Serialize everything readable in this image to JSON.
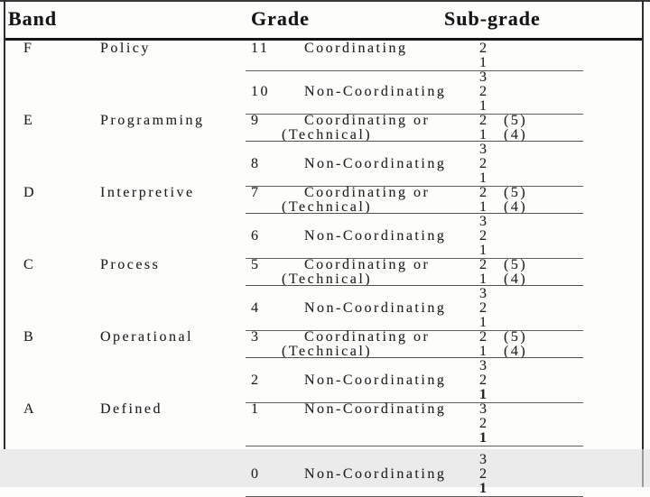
{
  "header": {
    "band": "Band",
    "grade": "Grade",
    "sub_grade": "Sub-grade"
  },
  "colors": {
    "page_bg": "#fdfdfc",
    "footer_band_bg": "#ebebeb",
    "text": "#222222",
    "header_text": "#141414",
    "separator_line": "#5f5f5f",
    "table_border": "#2e2e2e"
  },
  "table": {
    "bands": [
      {
        "letter": "F",
        "name": "Policy",
        "groups": [
          {
            "grade": "11",
            "type": "Coordinating",
            "grade_row": 0,
            "subs": [
              {
                "n": "2"
              },
              {
                "n": "1"
              }
            ]
          },
          {
            "grade": "10",
            "type": "Non-Coordinating",
            "grade_row": 1,
            "subs": [
              {
                "n": "3"
              },
              {
                "n": "2"
              },
              {
                "n": "1"
              }
            ]
          }
        ]
      },
      {
        "letter": "E",
        "name": "Programming",
        "groups": [
          {
            "grade": "9",
            "type": "Coordinating or",
            "type2": "(Technical)",
            "grade_row": 0,
            "subs": [
              {
                "n": "2",
                "note": "(5)"
              },
              {
                "n": "1",
                "note": "(4)"
              }
            ]
          },
          {
            "grade": "8",
            "type": "Non-Coordinating",
            "grade_row": 1,
            "subs": [
              {
                "n": "3"
              },
              {
                "n": "2"
              },
              {
                "n": "1"
              }
            ]
          }
        ]
      },
      {
        "letter": "D",
        "name": "Interpretive",
        "groups": [
          {
            "grade": "7",
            "type": "Coordinating or",
            "type2": "(Technical)",
            "grade_row": 0,
            "subs": [
              {
                "n": "2",
                "note": "(5)"
              },
              {
                "n": "1",
                "note": "(4)"
              }
            ]
          },
          {
            "grade": "6",
            "type": "Non-Coordinating",
            "grade_row": 1,
            "subs": [
              {
                "n": "3"
              },
              {
                "n": "2"
              },
              {
                "n": "1"
              }
            ]
          }
        ]
      },
      {
        "letter": "C",
        "name": "Process",
        "groups": [
          {
            "grade": "5",
            "type": "Coordinating or",
            "type2": "(Technical)",
            "grade_row": 0,
            "subs": [
              {
                "n": "2",
                "note": "(5)"
              },
              {
                "n": "1",
                "note": "(4)"
              }
            ]
          },
          {
            "grade": "4",
            "type": "Non-Coordinating",
            "grade_row": 1,
            "subs": [
              {
                "n": "3"
              },
              {
                "n": "2"
              },
              {
                "n": "1"
              }
            ]
          }
        ]
      },
      {
        "letter": "B",
        "name": "Operational",
        "groups": [
          {
            "grade": "3",
            "type": "Coordinating or",
            "type2": "(Technical)",
            "grade_row": 0,
            "subs": [
              {
                "n": "2",
                "note": "(5)"
              },
              {
                "n": "1",
                "note": "(4)"
              }
            ]
          },
          {
            "grade": "2",
            "type": "Non-Coordinating",
            "grade_row": 1,
            "subs": [
              {
                "n": "3"
              },
              {
                "n": "2"
              },
              {
                "n": "1",
                "b": true
              }
            ]
          }
        ]
      },
      {
        "letter": "A",
        "name": "Defined",
        "groups": [
          {
            "grade": "1",
            "type": "Non-Coordinating",
            "grade_row": 0,
            "subs": [
              {
                "n": "3"
              },
              {
                "n": "2"
              },
              {
                "n": "1",
                "b": true
              }
            ]
          }
        ]
      },
      {
        "letter": "",
        "name": "",
        "extra_gap": true,
        "groups": [
          {
            "grade": "0",
            "type": "Non-Coordinating",
            "grade_row": 1,
            "subs": [
              {
                "n": "3"
              },
              {
                "n": "2"
              },
              {
                "n": "1",
                "b": true
              }
            ]
          }
        ]
      }
    ]
  }
}
